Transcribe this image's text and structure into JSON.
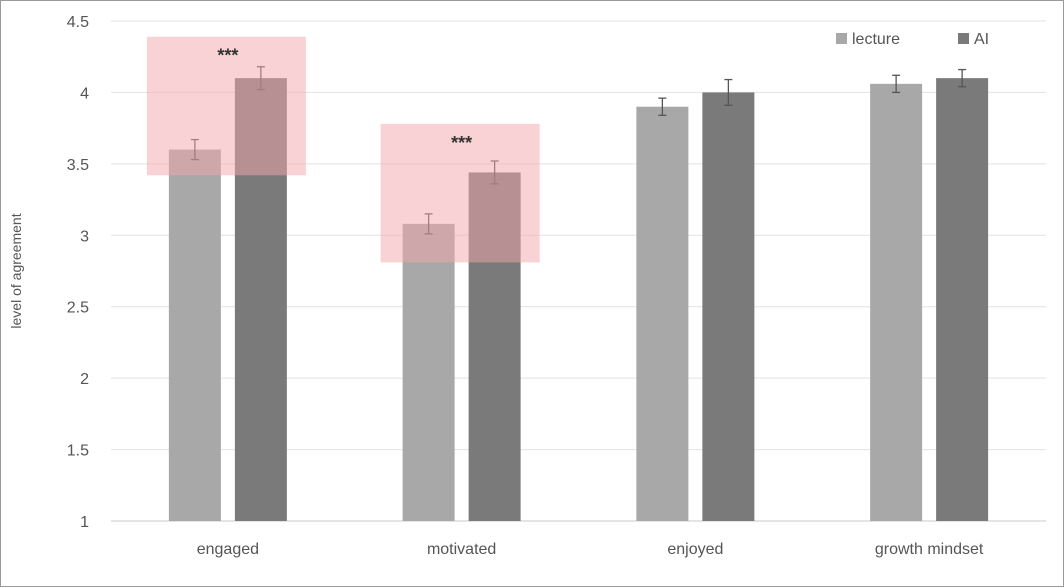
{
  "chart_data": {
    "type": "bar",
    "title": "",
    "xlabel": "",
    "ylabel": "level of agreement",
    "ylim": [
      1,
      4.5
    ],
    "yticks": [
      1,
      1.5,
      2,
      2.5,
      3,
      3.5,
      4,
      4.5
    ],
    "categories": [
      "engaged",
      "motivated",
      "enjoyed",
      "growth mindset"
    ],
    "series": [
      {
        "name": "lecture",
        "values": [
          3.6,
          3.08,
          3.9,
          4.06
        ],
        "errors": [
          0.07,
          0.07,
          0.06,
          0.06
        ],
        "color": "#a8a8a8"
      },
      {
        "name": "AI",
        "values": [
          4.1,
          3.44,
          4.0,
          4.1
        ],
        "errors": [
          0.08,
          0.08,
          0.09,
          0.06
        ],
        "color": "#7a7a7a"
      }
    ],
    "annotations": [
      {
        "category": "engaged",
        "text": "***",
        "highlight_range": [
          3.42,
          4.39
        ]
      },
      {
        "category": "motivated",
        "text": "***",
        "highlight_range": [
          2.81,
          3.78
        ]
      }
    ],
    "grid": true,
    "legend": "top-right",
    "highlight_color": "#f4a6ab"
  }
}
